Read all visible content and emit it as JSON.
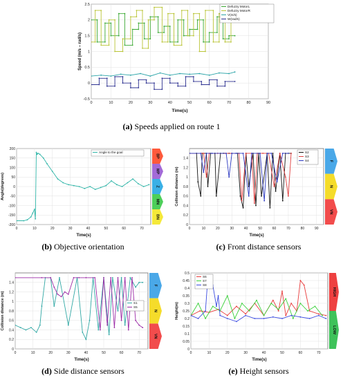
{
  "captions": [
    {
      "letter": "(a)",
      "text": "Speeds applied on route 1"
    },
    {
      "letter": "(b)",
      "text": "Objective orientation"
    },
    {
      "letter": "(c)",
      "text": "Front distance sensors"
    },
    {
      "letter": "(d)",
      "text": "Side distance sensors"
    },
    {
      "letter": "(e)",
      "text": "Height sensors"
    }
  ],
  "chart_data": [
    {
      "type": "line",
      "xlabel": "Time(s)",
      "ylabel": "Speed (m/s – rad/s)",
      "xlim": [
        0,
        90
      ],
      "ylim": [
        -0.5,
        2.5
      ],
      "xticks": [
        "0",
        "10",
        "20",
        "30",
        "40",
        "50",
        "60",
        "70",
        "80",
        "90"
      ],
      "yticks": [
        "-0.5",
        "0",
        "0.5",
        "1",
        "1.5",
        "2",
        "2.5"
      ],
      "grid": true,
      "legend": "top-right",
      "series": [
        {
          "name": "Defuzzy MotorL",
          "color": "#3aa832",
          "x": [
            0,
            3,
            3,
            7,
            7,
            10,
            10,
            14,
            14,
            17,
            17,
            21,
            21,
            24,
            24,
            27,
            27,
            30,
            30,
            34,
            34,
            37,
            37,
            40,
            40,
            44,
            44,
            47,
            47,
            50,
            50,
            54,
            54,
            57,
            57,
            60,
            60,
            64,
            64,
            67,
            67,
            70,
            70,
            73
          ],
          "y": [
            2.0,
            2.0,
            1.3,
            1.3,
            1.9,
            1.9,
            1.5,
            1.5,
            2.2,
            2.2,
            1.2,
            1.2,
            1.7,
            1.7,
            1.9,
            1.9,
            1.4,
            1.4,
            2.1,
            2.1,
            1.6,
            1.6,
            1.8,
            1.8,
            1.3,
            1.3,
            2.0,
            2.0,
            1.5,
            1.5,
            1.7,
            1.7,
            2.0,
            2.0,
            1.3,
            1.3,
            1.6,
            1.6,
            2.1,
            2.1,
            1.4,
            1.4,
            1.5,
            1.5
          ]
        },
        {
          "name": "Defuzzy MotorR",
          "color": "#b9c435",
          "x": [
            0,
            2,
            2,
            5,
            5,
            9,
            9,
            12,
            12,
            16,
            16,
            20,
            20,
            23,
            23,
            26,
            26,
            29,
            29,
            32,
            32,
            36,
            36,
            39,
            39,
            42,
            42,
            46,
            46,
            49,
            49,
            52,
            52,
            55,
            55,
            58,
            58,
            62,
            62,
            65,
            65,
            68,
            68,
            71,
            71,
            73
          ],
          "y": [
            1.3,
            1.3,
            2.3,
            2.3,
            1.2,
            1.2,
            2.0,
            2.0,
            1.0,
            1.0,
            1.4,
            1.4,
            2.1,
            2.1,
            2.3,
            2.3,
            1.1,
            1.1,
            2.0,
            2.0,
            2.4,
            2.4,
            1.3,
            1.3,
            2.2,
            2.2,
            1.2,
            1.2,
            2.3,
            2.3,
            1.5,
            1.5,
            2.2,
            2.2,
            1.0,
            1.0,
            2.3,
            2.3,
            1.3,
            1.3,
            2.2,
            2.2,
            1.3,
            1.3,
            2.0,
            2.0
          ]
        },
        {
          "name": "V(m/s)",
          "color": "#2ba4a8",
          "x": [
            0,
            5,
            10,
            15,
            20,
            25,
            30,
            35,
            40,
            45,
            50,
            55,
            60,
            65,
            70,
            73
          ],
          "y": [
            0.22,
            0.25,
            0.22,
            0.28,
            0.25,
            0.3,
            0.22,
            0.32,
            0.25,
            0.3,
            0.28,
            0.3,
            0.25,
            0.32,
            0.3,
            0.35
          ]
        },
        {
          "name": "W(rad/s)",
          "color": "#2b2f8f",
          "x": [
            0,
            4,
            4,
            8,
            8,
            12,
            12,
            16,
            16,
            20,
            20,
            24,
            24,
            28,
            28,
            32,
            32,
            36,
            36,
            40,
            40,
            44,
            44,
            48,
            48,
            52,
            52,
            56,
            56,
            60,
            60,
            64,
            64,
            68,
            68,
            73
          ],
          "y": [
            -0.05,
            -0.05,
            0.15,
            0.15,
            -0.1,
            -0.1,
            0.2,
            0.2,
            0.0,
            0.0,
            -0.15,
            -0.15,
            0.1,
            0.1,
            0.0,
            0.0,
            -0.2,
            -0.2,
            0.15,
            0.15,
            0.0,
            0.0,
            -0.1,
            -0.1,
            0.2,
            0.2,
            0.05,
            0.05,
            -0.05,
            -0.05,
            0.1,
            0.1,
            -0.1,
            -0.1,
            0.05,
            0.05
          ]
        }
      ]
    },
    {
      "type": "line",
      "xlabel": "Time(s)",
      "ylabel": "Angle(degrees)",
      "xlim": [
        0,
        75
      ],
      "ylim": [
        -200,
        200
      ],
      "xticks": [
        "0",
        "10",
        "20",
        "30",
        "40",
        "50",
        "60",
        "70"
      ],
      "yticks": [
        "-200",
        "-150",
        "-100",
        "-50",
        "0",
        "50",
        "100",
        "150",
        "200"
      ],
      "grid": true,
      "legend": "top-right",
      "zones": [
        "BP",
        "MP",
        "Z",
        "MN",
        "BN"
      ],
      "series": [
        {
          "name": "Angle to the goal",
          "color": "#2fb5a8",
          "x": [
            0,
            4,
            6,
            8,
            9,
            10,
            10.5,
            11,
            11.5,
            12,
            13,
            15,
            17,
            20,
            23,
            26,
            29,
            32,
            35,
            38,
            41,
            44,
            47,
            50,
            53,
            56,
            59,
            62,
            65,
            68,
            71,
            74
          ],
          "y": [
            -180,
            -180,
            -175,
            -160,
            -140,
            -120,
            -170,
            180,
            170,
            175,
            170,
            150,
            120,
            80,
            40,
            20,
            10,
            5,
            0,
            -10,
            0,
            -15,
            -5,
            5,
            30,
            10,
            0,
            20,
            40,
            15,
            0,
            10
          ]
        }
      ]
    },
    {
      "type": "line",
      "xlabel": "Time(s)",
      "ylabel": "Collision distance (m)",
      "xlim": [
        0,
        95
      ],
      "ylim": [
        0,
        1.6
      ],
      "xticks": [
        "0",
        "10",
        "20",
        "30",
        "40",
        "50",
        "60",
        "70",
        "80",
        "90"
      ],
      "yticks": [
        "0",
        "0.2",
        "0.4",
        "0.6",
        "0.8",
        "1",
        "1.2",
        "1.4"
      ],
      "grid": true,
      "legend": "top-right",
      "zones": [
        "F",
        "N",
        "VN"
      ],
      "series": [
        {
          "name": "S2",
          "color": "#111111",
          "x": [
            0,
            5,
            6,
            8,
            9,
            12,
            13,
            15,
            18,
            19,
            22,
            24,
            28,
            30,
            34,
            36,
            38,
            40,
            42,
            45,
            47,
            49,
            51,
            55,
            57,
            59,
            61,
            64,
            66,
            68,
            72
          ],
          "y": [
            1.5,
            1.5,
            0.9,
            0.6,
            1.5,
            1.5,
            0.8,
            1.5,
            1.5,
            0.6,
            1.5,
            1.5,
            1.5,
            1.5,
            1.5,
            0.6,
            0.35,
            1.5,
            0.8,
            1.5,
            0.4,
            1.5,
            0.6,
            1.5,
            0.35,
            1.5,
            0.7,
            1.5,
            0.5,
            1.5,
            1.5
          ]
        },
        {
          "name": "S3",
          "color": "#e03a3a",
          "x": [
            0,
            10,
            12,
            14,
            20,
            25,
            35,
            37,
            40,
            44,
            46,
            48,
            52,
            56,
            60,
            64,
            68,
            70,
            72
          ],
          "y": [
            1.5,
            1.5,
            1.0,
            1.5,
            1.5,
            1.5,
            1.5,
            0.5,
            1.5,
            1.5,
            0.45,
            1.5,
            1.5,
            1.5,
            0.8,
            1.5,
            1.0,
            0.6,
            1.5
          ]
        },
        {
          "name": "S4",
          "color": "#2a37c0",
          "x": [
            0,
            8,
            10,
            12,
            16,
            26,
            28,
            30,
            33,
            38,
            42,
            44,
            50,
            53,
            55,
            58,
            62,
            66,
            70
          ],
          "y": [
            1.5,
            1.5,
            1.1,
            1.5,
            1.5,
            1.5,
            1.0,
            1.5,
            1.5,
            1.5,
            0.6,
            1.5,
            1.5,
            0.5,
            1.5,
            1.5,
            0.9,
            1.5,
            1.5
          ]
        }
      ]
    },
    {
      "type": "line",
      "xlabel": "Time(s)",
      "ylabel": "Collision distance (m)",
      "xlim": [
        0,
        75
      ],
      "ylim": [
        0,
        1.6
      ],
      "xticks": [
        "0",
        "10",
        "20",
        "30",
        "40",
        "50",
        "60",
        "70"
      ],
      "yticks": [
        "0",
        "0.2",
        "0.4",
        "0.6",
        "0.8",
        "1",
        "1.2",
        "1.4"
      ],
      "grid": true,
      "legend": "middle-right",
      "zones": [
        "F",
        "N",
        "VN"
      ],
      "series": [
        {
          "name": "S1",
          "color": "#2fa7a4",
          "x": [
            0,
            3,
            6,
            9,
            12,
            14,
            15,
            17,
            20,
            22,
            25,
            30,
            35,
            38,
            40,
            42,
            44,
            47,
            50,
            53,
            55,
            58,
            60,
            62,
            65,
            68,
            70,
            72
          ],
          "y": [
            0.5,
            0.45,
            0.4,
            0.45,
            0.35,
            0.5,
            0.9,
            1.5,
            1.5,
            0.9,
            1.5,
            0.5,
            1.5,
            0.35,
            0.2,
            0.6,
            1.5,
            0.4,
            1.5,
            0.3,
            1.5,
            0.8,
            1.5,
            0.5,
            1.5,
            1.3,
            1.4,
            1.4
          ]
        },
        {
          "name": "S5",
          "color": "#9b2aa6",
          "x": [
            0,
            15,
            20,
            22,
            24,
            26,
            28,
            30,
            33,
            36,
            40,
            45,
            48,
            50,
            52,
            54,
            56,
            58,
            60,
            62,
            64,
            66,
            68,
            70,
            72
          ],
          "y": [
            1.5,
            1.5,
            1.5,
            1.3,
            1.15,
            1.1,
            1.2,
            1.15,
            1.5,
            1.5,
            1.5,
            1.5,
            0.4,
            1.5,
            0.5,
            1.5,
            0.45,
            1.5,
            0.6,
            1.5,
            0.4,
            1.5,
            0.6,
            0.5,
            0.45
          ]
        }
      ]
    },
    {
      "type": "line",
      "xlabel": "Time(s)",
      "ylabel": "Height(m)",
      "xlim": [
        0,
        75
      ],
      "ylim": [
        0,
        0.5
      ],
      "xticks": [
        "0",
        "10",
        "20",
        "30",
        "40",
        "50",
        "60",
        "70"
      ],
      "yticks": [
        "0",
        "0.05",
        "0.1",
        "0.15",
        "0.2",
        "0.25",
        "0.3",
        "0.35",
        "0.4",
        "0.45",
        "0.5"
      ],
      "grid": true,
      "legend": "top-left",
      "zones": [
        "HIGH",
        "LOW"
      ],
      "series": [
        {
          "name": "S6",
          "color": "#e83a3a",
          "x": [
            0,
            5,
            10,
            15,
            20,
            25,
            30,
            35,
            40,
            45,
            48,
            50,
            52,
            55,
            58,
            60,
            62,
            65,
            70,
            74
          ],
          "y": [
            0.22,
            0.25,
            0.24,
            0.26,
            0.22,
            0.28,
            0.23,
            0.3,
            0.22,
            0.32,
            0.25,
            0.38,
            0.22,
            0.3,
            0.25,
            0.45,
            0.42,
            0.25,
            0.23,
            0.22
          ]
        },
        {
          "name": "S7",
          "color": "#3bd13b",
          "x": [
            0,
            4,
            8,
            12,
            16,
            20,
            24,
            28,
            32,
            36,
            40,
            44,
            48,
            52,
            56,
            60,
            64,
            68,
            72
          ],
          "y": [
            0.22,
            0.3,
            0.2,
            0.28,
            0.25,
            0.35,
            0.2,
            0.3,
            0.25,
            0.32,
            0.22,
            0.3,
            0.26,
            0.33,
            0.2,
            0.3,
            0.25,
            0.28,
            0.22
          ]
        },
        {
          "name": "S8",
          "color": "#3a4ae0",
          "x": [
            0,
            4,
            8,
            9,
            10,
            12,
            14,
            15,
            16,
            20,
            25,
            30,
            35,
            40,
            45,
            50,
            55,
            60,
            65,
            70,
            74
          ],
          "y": [
            0.22,
            0.2,
            0.25,
            0.42,
            0.4,
            0.42,
            0.28,
            0.35,
            0.22,
            0.2,
            0.18,
            0.22,
            0.2,
            0.2,
            0.21,
            0.2,
            0.22,
            0.21,
            0.2,
            0.22,
            0.2
          ]
        }
      ]
    }
  ]
}
